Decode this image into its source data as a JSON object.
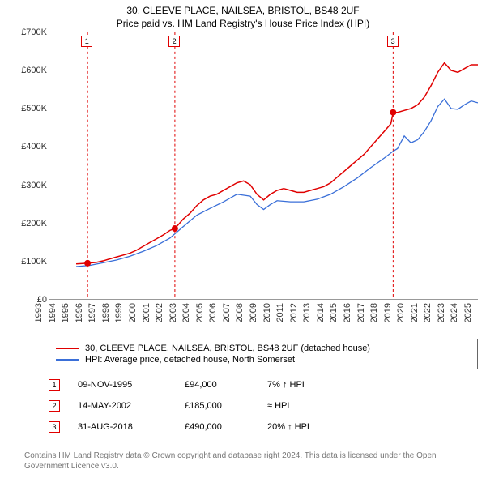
{
  "title": "30, CLEEVE PLACE, NAILSEA, BRISTOL, BS48 2UF",
  "subtitle": "Price paid vs. HM Land Registry's House Price Index (HPI)",
  "chart": {
    "type": "line",
    "ymin": 0,
    "ymax": 700000,
    "ytick_step": 100000,
    "ytick_labels": [
      "£0",
      "£100K",
      "£200K",
      "£300K",
      "£400K",
      "£500K",
      "£600K",
      "£700K"
    ],
    "xmin": 1993,
    "xmax": 2025,
    "xtick_labels": [
      "1993",
      "1994",
      "1995",
      "1996",
      "1997",
      "1998",
      "1999",
      "2000",
      "2001",
      "2002",
      "2003",
      "2004",
      "2005",
      "2006",
      "2007",
      "2008",
      "2009",
      "2010",
      "2011",
      "2012",
      "2013",
      "2014",
      "2015",
      "2016",
      "2017",
      "2018",
      "2019",
      "2020",
      "2021",
      "2022",
      "2023",
      "2024",
      "2025"
    ],
    "background_color": "#ffffff",
    "axis_color": "#999999",
    "series": [
      {
        "name": "30, CLEEVE PLACE, NAILSEA, BRISTOL, BS48 2UF (detached house)",
        "color": "#e00000",
        "width": 1.5,
        "points": [
          [
            1995.0,
            92000
          ],
          [
            1995.85,
            94000
          ],
          [
            1996.5,
            96000
          ],
          [
            1997.0,
            100000
          ],
          [
            1997.5,
            105000
          ],
          [
            1998.0,
            110000
          ],
          [
            1998.5,
            115000
          ],
          [
            1999.0,
            120000
          ],
          [
            1999.5,
            128000
          ],
          [
            2000.0,
            138000
          ],
          [
            2000.5,
            148000
          ],
          [
            2001.0,
            158000
          ],
          [
            2001.5,
            168000
          ],
          [
            2002.0,
            180000
          ],
          [
            2002.37,
            185000
          ],
          [
            2003.0,
            210000
          ],
          [
            2003.5,
            225000
          ],
          [
            2004.0,
            245000
          ],
          [
            2004.5,
            260000
          ],
          [
            2005.0,
            270000
          ],
          [
            2005.5,
            275000
          ],
          [
            2006.0,
            285000
          ],
          [
            2006.5,
            295000
          ],
          [
            2007.0,
            305000
          ],
          [
            2007.5,
            310000
          ],
          [
            2008.0,
            300000
          ],
          [
            2008.5,
            275000
          ],
          [
            2009.0,
            260000
          ],
          [
            2009.5,
            275000
          ],
          [
            2010.0,
            285000
          ],
          [
            2010.5,
            290000
          ],
          [
            2011.0,
            285000
          ],
          [
            2011.5,
            280000
          ],
          [
            2012.0,
            280000
          ],
          [
            2012.5,
            285000
          ],
          [
            2013.0,
            290000
          ],
          [
            2013.5,
            295000
          ],
          [
            2014.0,
            305000
          ],
          [
            2014.5,
            320000
          ],
          [
            2015.0,
            335000
          ],
          [
            2015.5,
            350000
          ],
          [
            2016.0,
            365000
          ],
          [
            2016.5,
            380000
          ],
          [
            2017.0,
            400000
          ],
          [
            2017.5,
            420000
          ],
          [
            2018.0,
            440000
          ],
          [
            2018.5,
            460000
          ],
          [
            2018.67,
            490000
          ],
          [
            2019.0,
            490000
          ],
          [
            2019.5,
            495000
          ],
          [
            2020.0,
            500000
          ],
          [
            2020.5,
            510000
          ],
          [
            2021.0,
            530000
          ],
          [
            2021.5,
            560000
          ],
          [
            2022.0,
            595000
          ],
          [
            2022.5,
            620000
          ],
          [
            2023.0,
            600000
          ],
          [
            2023.5,
            595000
          ],
          [
            2024.0,
            605000
          ],
          [
            2024.5,
            615000
          ],
          [
            2025.0,
            615000
          ]
        ]
      },
      {
        "name": "HPI: Average price, detached house, North Somerset",
        "color": "#3a6fd8",
        "width": 1.3,
        "points": [
          [
            1995.0,
            85000
          ],
          [
            1996.0,
            88000
          ],
          [
            1997.0,
            95000
          ],
          [
            1998.0,
            102000
          ],
          [
            1999.0,
            112000
          ],
          [
            2000.0,
            125000
          ],
          [
            2001.0,
            140000
          ],
          [
            2002.0,
            160000
          ],
          [
            2003.0,
            190000
          ],
          [
            2004.0,
            220000
          ],
          [
            2005.0,
            238000
          ],
          [
            2006.0,
            255000
          ],
          [
            2007.0,
            275000
          ],
          [
            2008.0,
            270000
          ],
          [
            2008.5,
            248000
          ],
          [
            2009.0,
            235000
          ],
          [
            2009.5,
            248000
          ],
          [
            2010.0,
            258000
          ],
          [
            2011.0,
            255000
          ],
          [
            2012.0,
            255000
          ],
          [
            2013.0,
            262000
          ],
          [
            2014.0,
            275000
          ],
          [
            2015.0,
            295000
          ],
          [
            2016.0,
            318000
          ],
          [
            2017.0,
            345000
          ],
          [
            2018.0,
            370000
          ],
          [
            2018.67,
            388000
          ],
          [
            2019.0,
            395000
          ],
          [
            2019.5,
            428000
          ],
          [
            2020.0,
            410000
          ],
          [
            2020.5,
            418000
          ],
          [
            2021.0,
            440000
          ],
          [
            2021.5,
            468000
          ],
          [
            2022.0,
            505000
          ],
          [
            2022.5,
            525000
          ],
          [
            2023.0,
            500000
          ],
          [
            2023.5,
            498000
          ],
          [
            2024.0,
            510000
          ],
          [
            2024.5,
            520000
          ],
          [
            2025.0,
            515000
          ]
        ]
      }
    ],
    "events": [
      {
        "num": "1",
        "year": 1995.85,
        "price": 94000,
        "date": "09-NOV-1995",
        "price_label": "£94,000",
        "rel": "7% ↑ HPI",
        "color": "#e00000"
      },
      {
        "num": "2",
        "year": 2002.37,
        "price": 185000,
        "date": "14-MAY-2002",
        "price_label": "£185,000",
        "rel": "≈ HPI",
        "color": "#e00000"
      },
      {
        "num": "3",
        "year": 2018.67,
        "price": 490000,
        "date": "31-AUG-2018",
        "price_label": "£490,000",
        "rel": "20% ↑ HPI",
        "color": "#e00000"
      }
    ]
  },
  "legend": {
    "border_color": "#666666"
  },
  "footer": "Contains HM Land Registry data © Crown copyright and database right 2024. This data is licensed under the Open Government Licence v3.0."
}
